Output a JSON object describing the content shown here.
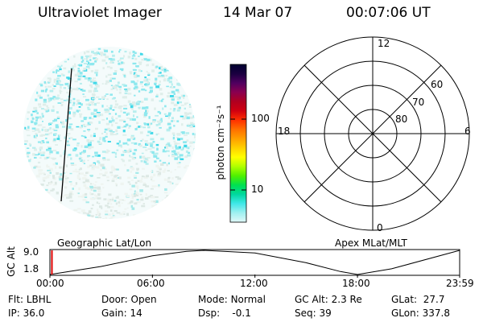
{
  "header": {
    "title": "Ultraviolet Imager",
    "date": "14 Mar 07",
    "time": "00:07:06 UT"
  },
  "colorbar": {
    "label": "photon cm⁻²s⁻¹",
    "ticks": [
      {
        "value": 100,
        "label": "100"
      },
      {
        "value": 10,
        "label": "10"
      }
    ],
    "scale": "log",
    "colors": [
      "#000030",
      "#1a0040",
      "#500060",
      "#8a0050",
      "#b00020",
      "#d00010",
      "#ff3000",
      "#ff7000",
      "#ffa000",
      "#ffd000",
      "#ffff00",
      "#b0ff00",
      "#50f000",
      "#00e050",
      "#00d8a0",
      "#40e8e8",
      "#a0f0f0",
      "#e0f8f8"
    ]
  },
  "polar": {
    "mlt_labels": {
      "top": "12",
      "left": "18",
      "right": "6",
      "bottom": "0"
    },
    "lat_labels": [
      "60",
      "70",
      "80"
    ]
  },
  "timeline": {
    "ylabel": "GC Alt",
    "yticks": [
      "9.0",
      "1.8"
    ],
    "left_label": "Geographic Lat/Lon",
    "right_label": "Apex MLat/MLT",
    "xticks": [
      "00:00",
      "06:00",
      "12:00",
      "18:00",
      "23:59"
    ]
  },
  "info": {
    "row1": [
      {
        "key": "Flt:",
        "value": "LBHL"
      },
      {
        "key": "Door:",
        "value": "Open"
      },
      {
        "key": "Mode:",
        "value": "Normal"
      },
      {
        "key": "GC Alt:",
        "value": "2.3 Re"
      },
      {
        "key": "GLat:",
        "value": "27.7"
      }
    ],
    "row2": [
      {
        "key": "IP:",
        "value": "36.0"
      },
      {
        "key": "Gain:",
        "value": "14"
      },
      {
        "key": "Dsp:",
        "value": "-0.1"
      },
      {
        "key": "Seq:",
        "value": "39"
      },
      {
        "key": "GLon:",
        "value": "337.8"
      }
    ]
  },
  "chart_data": {
    "type": "line",
    "x_unit": "hours UT",
    "x": [
      0,
      3,
      6,
      8,
      9,
      12,
      15,
      17,
      18,
      20,
      23.98
    ],
    "series": [
      {
        "values": [
          1.8,
          4.2,
          7.4,
          8.7,
          9.0,
          8.2,
          5.3,
          2.7,
          1.8,
          3.5,
          9.0
        ]
      }
    ],
    "xlim": [
      0,
      23.98
    ],
    "ylim": [
      1.8,
      9.0
    ],
    "current_time": 0.12
  }
}
